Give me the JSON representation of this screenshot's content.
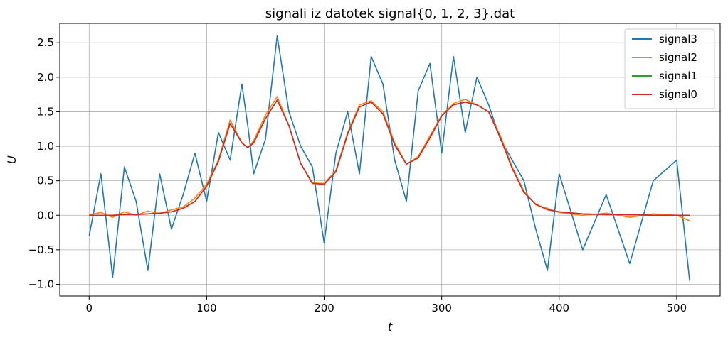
{
  "chart_data": {
    "type": "line",
    "title": "signali iz datotek signal{0, 1, 2, 3}.dat",
    "xlabel": "t",
    "ylabel": "U",
    "xlim": [
      -25,
      537
    ],
    "ylim": [
      -1.17,
      2.78
    ],
    "xticks": [
      0,
      100,
      200,
      300,
      400,
      500
    ],
    "xtick_labels": [
      "0",
      "100",
      "200",
      "300",
      "400",
      "500"
    ],
    "yticks": [
      -1.0,
      -0.5,
      0.0,
      0.5,
      1.0,
      1.5,
      2.0,
      2.5
    ],
    "ytick_labels": [
      "−1.0",
      "−0.5",
      "0.0",
      "0.5",
      "1.0",
      "1.5",
      "2.0",
      "2.5"
    ],
    "grid": true,
    "legend_position": "top-right",
    "x": [
      0,
      10,
      20,
      30,
      40,
      50,
      60,
      70,
      80,
      90,
      100,
      110,
      120,
      130,
      135,
      140,
      150,
      160,
      170,
      180,
      190,
      200,
      210,
      220,
      230,
      240,
      250,
      260,
      270,
      280,
      290,
      300,
      310,
      320,
      330,
      340,
      350,
      360,
      370,
      380,
      390,
      400,
      420,
      440,
      460,
      480,
      500,
      511
    ],
    "series": [
      {
        "name": "signal3",
        "color": "#1f77b4",
        "values": [
          -0.3,
          0.6,
          -0.9,
          0.7,
          0.2,
          -0.8,
          0.6,
          -0.2,
          0.3,
          0.9,
          0.2,
          1.2,
          0.8,
          1.9,
          1.3,
          0.6,
          1.1,
          2.6,
          1.5,
          1.0,
          0.7,
          -0.4,
          0.9,
          1.5,
          0.6,
          2.3,
          1.9,
          0.8,
          0.2,
          1.8,
          2.2,
          0.9,
          2.3,
          1.2,
          2.0,
          1.6,
          1.1,
          0.8,
          0.5,
          -0.2,
          -0.8,
          0.6,
          -0.5,
          0.3,
          -0.7,
          0.5,
          0.8,
          -0.95
        ]
      },
      {
        "name": "signal2",
        "color": "#ff7f0e",
        "values": [
          0.01,
          0.04,
          -0.03,
          0.05,
          0.0,
          0.06,
          0.02,
          0.08,
          0.12,
          0.25,
          0.45,
          0.8,
          1.38,
          1.05,
          0.98,
          1.08,
          1.45,
          1.72,
          1.3,
          0.75,
          0.47,
          0.46,
          0.65,
          1.2,
          1.6,
          1.66,
          1.5,
          1.05,
          0.74,
          0.85,
          1.15,
          1.45,
          1.62,
          1.68,
          1.6,
          1.5,
          1.15,
          0.7,
          0.35,
          0.15,
          0.1,
          0.04,
          0.0,
          0.03,
          -0.03,
          0.02,
          0.0,
          -0.08
        ]
      },
      {
        "name": "signal1",
        "color": "#2ca02c",
        "values": [
          0.0,
          0.0,
          0.0,
          0.01,
          0.01,
          0.02,
          0.03,
          0.05,
          0.1,
          0.2,
          0.42,
          0.78,
          1.33,
          1.05,
          0.98,
          1.05,
          1.4,
          1.67,
          1.3,
          0.75,
          0.46,
          0.45,
          0.63,
          1.18,
          1.57,
          1.64,
          1.47,
          1.02,
          0.74,
          0.83,
          1.12,
          1.44,
          1.6,
          1.64,
          1.6,
          1.5,
          1.12,
          0.68,
          0.33,
          0.16,
          0.08,
          0.05,
          0.02,
          0.01,
          0.01,
          0.0,
          0.0,
          0.0
        ]
      },
      {
        "name": "signal0",
        "color": "#d62728",
        "values": [
          0.0,
          0.0,
          0.0,
          0.01,
          0.01,
          0.02,
          0.03,
          0.05,
          0.1,
          0.2,
          0.42,
          0.78,
          1.33,
          1.05,
          0.98,
          1.05,
          1.4,
          1.67,
          1.3,
          0.75,
          0.46,
          0.45,
          0.63,
          1.18,
          1.57,
          1.64,
          1.47,
          1.02,
          0.74,
          0.83,
          1.12,
          1.44,
          1.6,
          1.64,
          1.6,
          1.5,
          1.12,
          0.68,
          0.33,
          0.16,
          0.08,
          0.05,
          0.02,
          0.01,
          0.01,
          0.0,
          0.0,
          0.0
        ]
      }
    ]
  }
}
